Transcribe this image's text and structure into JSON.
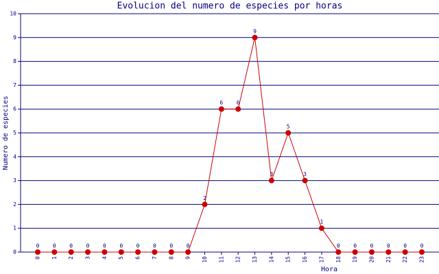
{
  "chart_data": {
    "type": "line",
    "title": "Evolucion del numero de especies por horas",
    "x_label": "Hora",
    "y_label": "Numero de especies",
    "categories": [
      "0",
      "1",
      "2",
      "3",
      "4",
      "5",
      "6",
      "7",
      "8",
      "9",
      "10",
      "11",
      "12",
      "13",
      "14",
      "15",
      "16",
      "17",
      "18",
      "19",
      "20",
      "21",
      "22",
      "23"
    ],
    "series": [
      {
        "name": "especies",
        "color": "#cc0000",
        "values": [
          0,
          0,
          0,
          0,
          0,
          0,
          0,
          0,
          0,
          0,
          2,
          6,
          6,
          9,
          3,
          5,
          3,
          1,
          0,
          0,
          0,
          0,
          0,
          0
        ]
      }
    ],
    "ylim": [
      0,
      10
    ],
    "yticks": [
      0,
      1,
      2,
      3,
      4,
      5,
      6,
      7,
      8,
      9,
      10
    ],
    "grid": true
  }
}
